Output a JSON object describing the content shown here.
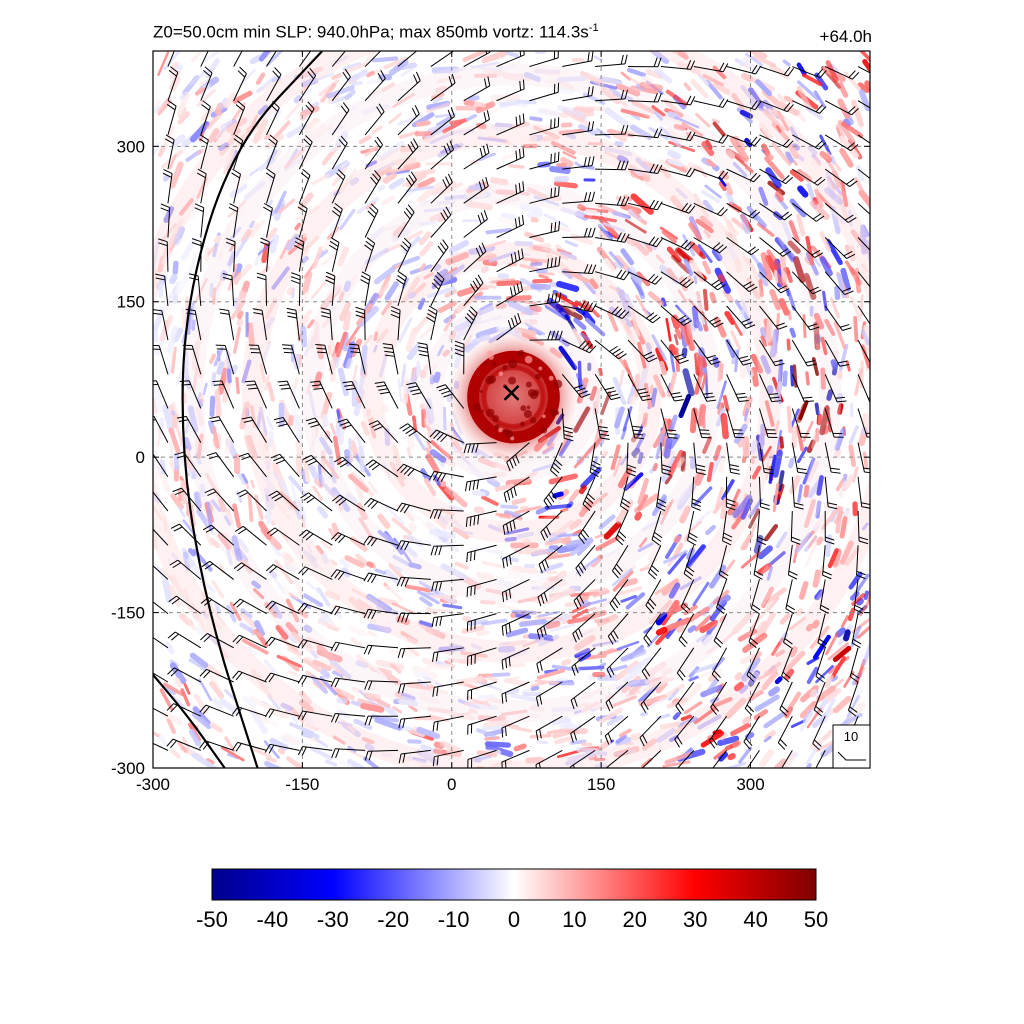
{
  "header": {
    "title_main": "Z0=50.0cm  min SLP: 940.0hPa; max 850mb vortz: 114.3s",
    "title_exponent": "-1",
    "forecast_time": "+64.0h"
  },
  "reference_vector": {
    "label": "10"
  },
  "colors": {
    "negative_max": "#00008b",
    "negative_mid": "#0000ff",
    "zero": "#ffffff",
    "positive_mid": "#ff0000",
    "positive_max": "#7f0000",
    "grid": "#888888",
    "barb": "#000000",
    "coast": "#000000"
  },
  "chart_data": {
    "type": "heatmap",
    "title": "Z0=50.0cm  min SLP: 940.0hPa; max 850mb vortz: 114.3s-1",
    "xlim": [
      -300,
      420
    ],
    "ylim": [
      -300,
      392
    ],
    "x_ticks": [
      -300,
      -150,
      0,
      150,
      300
    ],
    "y_ticks": [
      -300,
      -150,
      0,
      150,
      300
    ],
    "grid": true,
    "grid_style": "dashed",
    "storm_center": {
      "x": 60,
      "y": 62,
      "marker": "x"
    },
    "eye_core": {
      "x": 62,
      "y": 58,
      "radius": 45
    },
    "colorbar": {
      "min": -50,
      "max": 50,
      "tick_labels": [
        -50,
        -40,
        -30,
        -20,
        -10,
        0,
        10,
        20,
        30,
        40,
        50
      ],
      "colormap": "blue-white-red"
    },
    "reference_vector_value": 10,
    "coastlines": [
      {
        "note": "arc west of center",
        "points": [
          [
            -130,
            392
          ],
          [
            -220,
            300
          ],
          [
            -268,
            150
          ],
          [
            -272,
            0
          ],
          [
            -245,
            -150
          ],
          [
            -195,
            -300
          ]
        ]
      },
      {
        "note": "lower-left arc",
        "points": [
          [
            -300,
            -210
          ],
          [
            -265,
            -250
          ],
          [
            -228,
            -300
          ]
        ]
      }
    ]
  }
}
